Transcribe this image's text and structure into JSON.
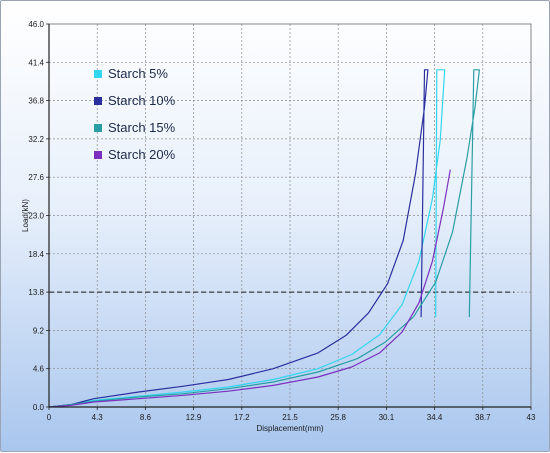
{
  "chart_data": {
    "type": "line",
    "xlabel": "Displacement(mm)",
    "ylabel": "Load(kN)",
    "xlim": [
      0,
      43
    ],
    "ylim": [
      0,
      46
    ],
    "x_ticks": [
      "0",
      "4.3",
      "8.6",
      "12.9",
      "17.2",
      "21.5",
      "25.8",
      "30.1",
      "34.4",
      "38.7",
      "43"
    ],
    "y_ticks": [
      "0.0",
      "4.6",
      "9.2",
      "13.8",
      "18.4",
      "23.0",
      "27.6",
      "32.2",
      "36.8",
      "41.4",
      "46.0"
    ],
    "grid": true,
    "legend_position": "top-left",
    "reference_line": {
      "y": 13.8,
      "x_range": [
        0,
        41.5
      ],
      "style": "dashed"
    },
    "series": [
      {
        "name": "Starch 5%",
        "color": "#33d6f0",
        "points": [
          [
            0,
            0
          ],
          [
            2,
            0.3
          ],
          [
            4,
            0.8
          ],
          [
            8,
            1.3
          ],
          [
            12,
            1.8
          ],
          [
            16,
            2.4
          ],
          [
            20,
            3.3
          ],
          [
            24,
            4.6
          ],
          [
            27,
            6.3
          ],
          [
            29.5,
            8.7
          ],
          [
            31.5,
            12.3
          ],
          [
            33,
            17.5
          ],
          [
            34.2,
            25
          ],
          [
            34.9,
            32
          ],
          [
            35.3,
            40.5
          ],
          [
            34.6,
            40.5
          ],
          [
            34.5,
            10.8
          ]
        ]
      },
      {
        "name": "Starch 10%",
        "color": "#2b2f9e",
        "points": [
          [
            0,
            0
          ],
          [
            2,
            0.3
          ],
          [
            4,
            1.0
          ],
          [
            8,
            1.8
          ],
          [
            12,
            2.5
          ],
          [
            16,
            3.3
          ],
          [
            20,
            4.6
          ],
          [
            24,
            6.5
          ],
          [
            26.5,
            8.6
          ],
          [
            28.5,
            11.3
          ],
          [
            30.2,
            14.8
          ],
          [
            31.6,
            20
          ],
          [
            32.7,
            28
          ],
          [
            33.5,
            36
          ],
          [
            33.8,
            40.5
          ],
          [
            33.5,
            40.5
          ],
          [
            33.2,
            10.8
          ]
        ]
      },
      {
        "name": "Starch 15%",
        "color": "#2a9ea5",
        "points": [
          [
            0,
            0
          ],
          [
            2,
            0.3
          ],
          [
            4,
            0.7
          ],
          [
            8,
            1.2
          ],
          [
            12,
            1.6
          ],
          [
            16,
            2.2
          ],
          [
            20,
            3.0
          ],
          [
            24,
            4.2
          ],
          [
            27.5,
            5.8
          ],
          [
            30,
            7.8
          ],
          [
            32.5,
            10.8
          ],
          [
            34.5,
            15
          ],
          [
            36,
            21
          ],
          [
            37.3,
            30
          ],
          [
            38,
            36
          ],
          [
            38.4,
            40.5
          ],
          [
            37.9,
            40.5
          ],
          [
            37.5,
            10.8
          ]
        ]
      },
      {
        "name": "Starch 20%",
        "color": "#7a2fbf",
        "points": [
          [
            0,
            0
          ],
          [
            2,
            0.2
          ],
          [
            4,
            0.6
          ],
          [
            8,
            1.0
          ],
          [
            12,
            1.4
          ],
          [
            16,
            1.9
          ],
          [
            20,
            2.6
          ],
          [
            24,
            3.6
          ],
          [
            27,
            4.8
          ],
          [
            29.5,
            6.5
          ],
          [
            31.5,
            9.0
          ],
          [
            33,
            12.5
          ],
          [
            34.2,
            17.5
          ],
          [
            35.2,
            24
          ],
          [
            35.8,
            28.5
          ]
        ]
      }
    ]
  }
}
